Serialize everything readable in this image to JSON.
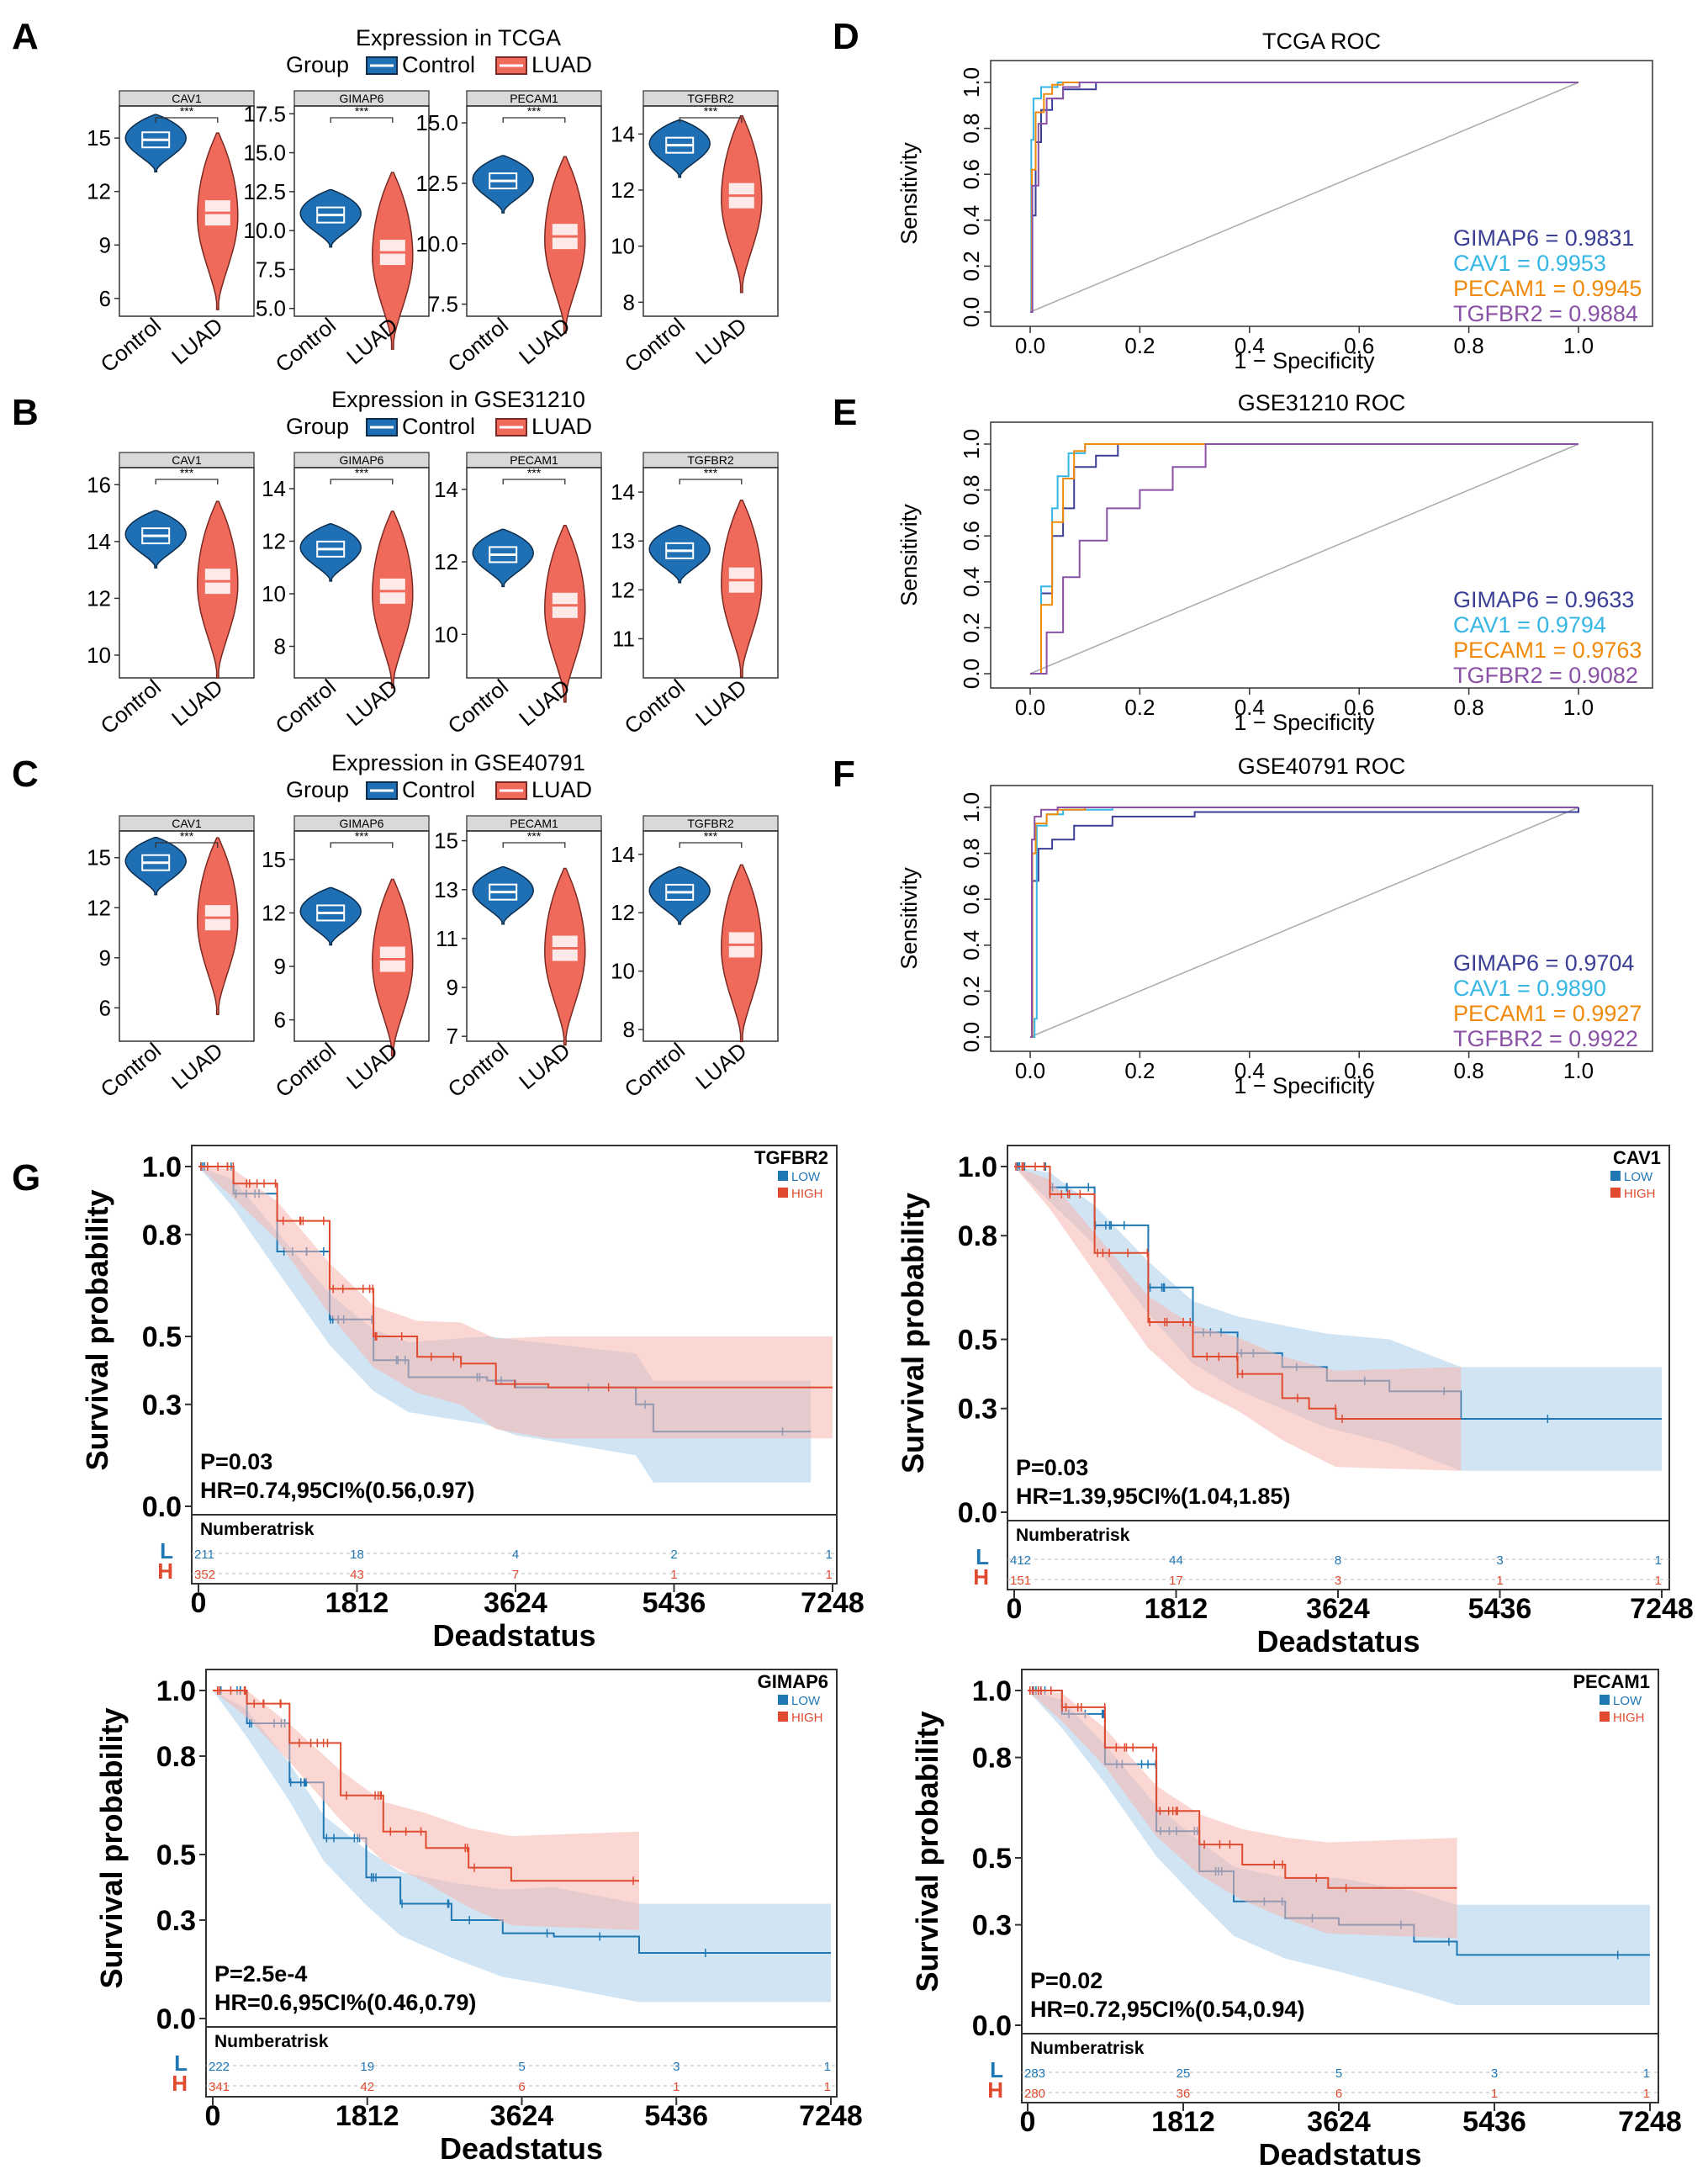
{
  "panel_labels": [
    "A",
    "B",
    "C",
    "D",
    "E",
    "F",
    "G"
  ],
  "colors": {
    "control": "#1f6fb4",
    "luad": "#f06a5c",
    "gimap6": "#3b3f96",
    "cav1": "#35b6e4",
    "pecam1": "#f08a0c",
    "tgfbr2": "#8a52a6",
    "km_low": "#1f77b4",
    "km_high": "#e04a2f"
  },
  "groups": {
    "legend_title": "Group",
    "control": "Control",
    "luad": "LUAD",
    "sig": "***"
  },
  "chart_data": [
    {
      "type": "violin",
      "title": "Expression in TCGA",
      "genes": [
        "CAV1",
        "GIMAP6",
        "PECAM1",
        "TGFBR2"
      ],
      "yticks": [
        [
          "6",
          "9",
          "12",
          "15"
        ],
        [
          "5.0",
          "7.5",
          "10.0",
          "12.5",
          "15.0",
          "17.5"
        ],
        [
          "7.5",
          "10.0",
          "12.5",
          "15.0"
        ],
        [
          "8",
          "10",
          "12",
          "14"
        ]
      ],
      "ylims": [
        [
          5,
          16.8
        ],
        [
          4.5,
          18
        ],
        [
          7,
          15.7
        ],
        [
          7.5,
          15
        ]
      ],
      "control_median": [
        14.9,
        11.0,
        12.6,
        13.6
      ],
      "luad_median": [
        10.8,
        8.6,
        10.3,
        11.8
      ]
    },
    {
      "type": "violin",
      "title": "Expression in GSE31210",
      "genes": [
        "CAV1",
        "GIMAP6",
        "PECAM1",
        "TGFBR2"
      ],
      "yticks": [
        [
          "10",
          "12",
          "14",
          "16"
        ],
        [
          "8",
          "10",
          "12",
          "14"
        ],
        [
          "10",
          "12",
          "14"
        ],
        [
          "11",
          "12",
          "13",
          "14"
        ]
      ],
      "ylims": [
        [
          9.2,
          16.6
        ],
        [
          6.8,
          14.8
        ],
        [
          8.8,
          14.6
        ],
        [
          10.2,
          14.5
        ]
      ],
      "control_median": [
        14.2,
        11.7,
        12.2,
        12.8
      ],
      "luad_median": [
        12.6,
        10.1,
        10.8,
        12.2
      ]
    },
    {
      "type": "violin",
      "title": "Expression in GSE40791",
      "genes": [
        "CAV1",
        "GIMAP6",
        "PECAM1",
        "TGFBR2"
      ],
      "yticks": [
        [
          "6",
          "9",
          "12",
          "15"
        ],
        [
          "6",
          "9",
          "12",
          "15"
        ],
        [
          "7",
          "9",
          "11",
          "13",
          "15"
        ],
        [
          "8",
          "10",
          "12",
          "14"
        ]
      ],
      "ylims": [
        [
          4,
          16.6
        ],
        [
          4.8,
          16.6
        ],
        [
          6.8,
          15.4
        ],
        [
          7.6,
          14.8
        ]
      ],
      "control_median": [
        14.7,
        12.0,
        12.9,
        12.7
      ],
      "luad_median": [
        11.4,
        9.4,
        10.6,
        10.9
      ]
    },
    {
      "type": "roc",
      "title": "TCGA ROC",
      "xlabel": "1 − Specificity",
      "ylabel": "Sensitivity",
      "xticks": [
        "0.0",
        "0.2",
        "0.4",
        "0.6",
        "0.8",
        "1.0"
      ],
      "yticks": [
        "0.0",
        "0.2",
        "0.4",
        "0.6",
        "0.8",
        "1.0"
      ],
      "series": [
        {
          "name": "GIMAP6",
          "label": "GIMAP6 = 0.9831"
        },
        {
          "name": "CAV1",
          "label": "CAV1 = 0.9953"
        },
        {
          "name": "PECAM1",
          "label": "PECAM1 = 0.9945"
        },
        {
          "name": "TGFBR2",
          "label": "TGFBR2 = 0.9884"
        }
      ]
    },
    {
      "type": "roc",
      "title": "GSE31210 ROC",
      "xlabel": "1 − Specificity",
      "ylabel": "Sensitivity",
      "xticks": [
        "0.0",
        "0.2",
        "0.4",
        "0.6",
        "0.8",
        "1.0"
      ],
      "yticks": [
        "0.0",
        "0.2",
        "0.4",
        "0.6",
        "0.8",
        "1.0"
      ],
      "series": [
        {
          "name": "GIMAP6",
          "label": "GIMAP6 = 0.9633"
        },
        {
          "name": "CAV1",
          "label": "CAV1 = 0.9794"
        },
        {
          "name": "PECAM1",
          "label": "PECAM1 = 0.9763"
        },
        {
          "name": "TGFBR2",
          "label": "TGFBR2 = 0.9082"
        }
      ]
    },
    {
      "type": "roc",
      "title": "GSE40791 ROC",
      "xlabel": "1 − Specificity",
      "ylabel": "Sensitivity",
      "xticks": [
        "0.0",
        "0.2",
        "0.4",
        "0.6",
        "0.8",
        "1.0"
      ],
      "yticks": [
        "0.0",
        "0.2",
        "0.4",
        "0.6",
        "0.8",
        "1.0"
      ],
      "series": [
        {
          "name": "GIMAP6",
          "label": "GIMAP6 = 0.9704"
        },
        {
          "name": "CAV1",
          "label": "CAV1 = 0.9890"
        },
        {
          "name": "PECAM1",
          "label": "PECAM1 = 0.9927"
        },
        {
          "name": "TGFBR2",
          "label": "TGFBR2 = 0.9922"
        }
      ]
    },
    {
      "type": "km",
      "gene": "TGFBR2",
      "p": "P=0.03",
      "hr": "HR=0.74,95CI%(0.56,0.97)",
      "low_risk": [
        "211",
        "18",
        "4",
        "2",
        "1"
      ],
      "high_risk": [
        "352",
        "43",
        "7",
        "1",
        "1"
      ],
      "low_curve": [
        [
          0,
          1
        ],
        [
          400,
          0.92
        ],
        [
          900,
          0.75
        ],
        [
          1500,
          0.55
        ],
        [
          2000,
          0.43
        ],
        [
          2400,
          0.38
        ],
        [
          3300,
          0.37
        ],
        [
          3624,
          0.35
        ],
        [
          5000,
          0.3
        ],
        [
          5200,
          0.22
        ],
        [
          7000,
          0.22
        ]
      ],
      "high_curve": [
        [
          0,
          1
        ],
        [
          400,
          0.95
        ],
        [
          900,
          0.84
        ],
        [
          1500,
          0.64
        ],
        [
          2000,
          0.5
        ],
        [
          2500,
          0.44
        ],
        [
          3000,
          0.42
        ],
        [
          3400,
          0.36
        ],
        [
          4000,
          0.35
        ],
        [
          7248,
          0.35
        ]
      ],
      "low_end": 7000,
      "high_end": 7248
    },
    {
      "type": "km",
      "gene": "CAV1",
      "p": "P=0.03",
      "hr": "HR=1.39,95CI%(1.04,1.85)",
      "low_risk": [
        "412",
        "44",
        "8",
        "3",
        "1"
      ],
      "high_risk": [
        "151",
        "17",
        "3",
        "1",
        "1"
      ],
      "low_curve": [
        [
          0,
          1
        ],
        [
          400,
          0.94
        ],
        [
          900,
          0.83
        ],
        [
          1500,
          0.65
        ],
        [
          2000,
          0.52
        ],
        [
          2500,
          0.46
        ],
        [
          3000,
          0.42
        ],
        [
          3500,
          0.38
        ],
        [
          4200,
          0.35
        ],
        [
          5000,
          0.27
        ],
        [
          7248,
          0.27
        ]
      ],
      "high_curve": [
        [
          0,
          1
        ],
        [
          400,
          0.92
        ],
        [
          900,
          0.75
        ],
        [
          1500,
          0.55
        ],
        [
          2000,
          0.45
        ],
        [
          2500,
          0.4
        ],
        [
          3000,
          0.33
        ],
        [
          3300,
          0.3
        ],
        [
          3600,
          0.27
        ],
        [
          5000,
          0.27
        ]
      ],
      "low_end": 7248,
      "high_end": 5000
    },
    {
      "type": "km",
      "gene": "GIMAP6",
      "p": "P=2.5e-4",
      "hr": "HR=0.6,95CI%(0.46,0.79)",
      "low_risk": [
        "222",
        "19",
        "5",
        "3",
        "1"
      ],
      "high_risk": [
        "341",
        "42",
        "6",
        "1",
        "1"
      ],
      "low_curve": [
        [
          0,
          1
        ],
        [
          400,
          0.9
        ],
        [
          900,
          0.72
        ],
        [
          1300,
          0.55
        ],
        [
          1800,
          0.43
        ],
        [
          2200,
          0.35
        ],
        [
          2800,
          0.3
        ],
        [
          3400,
          0.26
        ],
        [
          4000,
          0.25
        ],
        [
          5000,
          0.2
        ],
        [
          7248,
          0.2
        ]
      ],
      "high_curve": [
        [
          0,
          1
        ],
        [
          400,
          0.96
        ],
        [
          900,
          0.84
        ],
        [
          1500,
          0.68
        ],
        [
          2000,
          0.57
        ],
        [
          2500,
          0.52
        ],
        [
          3000,
          0.46
        ],
        [
          3500,
          0.42
        ],
        [
          5000,
          0.42
        ]
      ],
      "low_end": 7248,
      "high_end": 5000
    },
    {
      "type": "km",
      "gene": "PECAM1",
      "p": "P=0.02",
      "hr": "HR=0.72,95CI%(0.54,0.94)",
      "low_risk": [
        "283",
        "25",
        "5",
        "3",
        "1"
      ],
      "high_risk": [
        "280",
        "36",
        "6",
        "1",
        "1"
      ],
      "low_curve": [
        [
          0,
          1
        ],
        [
          400,
          0.93
        ],
        [
          900,
          0.78
        ],
        [
          1500,
          0.58
        ],
        [
          2000,
          0.46
        ],
        [
          2400,
          0.37
        ],
        [
          3000,
          0.32
        ],
        [
          3624,
          0.3
        ],
        [
          4500,
          0.25
        ],
        [
          5000,
          0.21
        ],
        [
          7248,
          0.21
        ]
      ],
      "high_curve": [
        [
          0,
          1
        ],
        [
          400,
          0.95
        ],
        [
          900,
          0.83
        ],
        [
          1500,
          0.64
        ],
        [
          2000,
          0.54
        ],
        [
          2500,
          0.48
        ],
        [
          3000,
          0.44
        ],
        [
          3500,
          0.41
        ],
        [
          5000,
          0.41
        ]
      ],
      "low_end": 7248,
      "high_end": 5000
    }
  ],
  "km_labels": {
    "ylabel": "Survival probability",
    "xlabel": "Deadstatus",
    "risk_title": "Numberatrisk",
    "low_legend": "LOW",
    "high_legend": "HIGH",
    "L": "L",
    "H": "H",
    "xticks": [
      "0",
      "1812",
      "3624",
      "5436",
      "7248"
    ],
    "yticks": [
      "0.0",
      "0.3",
      "0.5",
      "0.8",
      "1.0"
    ]
  }
}
